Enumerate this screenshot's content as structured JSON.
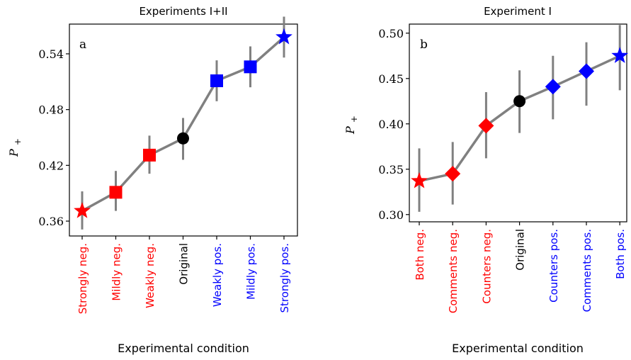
{
  "colors": {
    "neg": "#ff0000",
    "pos": "#0000ff",
    "neutral": "#000000",
    "line": "#808080"
  },
  "chart_data": [
    {
      "type": "line",
      "title": "Experiments I+II",
      "panel_label": "a",
      "xlabel": "Experimental condition",
      "ylabel": "P+",
      "ylim": [
        0.344,
        0.572
      ],
      "yticks": [
        0.36,
        0.42,
        0.48,
        0.54
      ],
      "ytick_labels": [
        "0.36",
        "0.42",
        "0.48",
        "0.54"
      ],
      "grid": false,
      "legend": "none",
      "categories": [
        "Strongly neg.",
        "Mildly neg.",
        "Weakly neg.",
        "Original",
        "Weakly pos.",
        "Mildly pos.",
        "Strongly pos."
      ],
      "category_colors": [
        "neg",
        "neg",
        "neg",
        "neutral",
        "pos",
        "pos",
        "pos"
      ],
      "markers": [
        "star",
        "square",
        "square",
        "circle",
        "square",
        "square",
        "star"
      ],
      "values": [
        0.371,
        0.391,
        0.431,
        0.449,
        0.511,
        0.526,
        0.558
      ],
      "err_low": [
        0.351,
        0.371,
        0.411,
        0.426,
        0.489,
        0.504,
        0.536
      ],
      "err_high": [
        0.392,
        0.414,
        0.452,
        0.471,
        0.533,
        0.548,
        0.58
      ]
    },
    {
      "type": "line",
      "title": "Experiment I",
      "panel_label": "b",
      "xlabel": "Experimental condition",
      "ylabel": "P+",
      "ylim": [
        0.292,
        0.51
      ],
      "yticks": [
        0.3,
        0.35,
        0.4,
        0.45,
        0.5
      ],
      "ytick_labels": [
        "0.30",
        "0.35",
        "0.40",
        "0.45",
        "0.50"
      ],
      "grid": false,
      "legend": "none",
      "categories": [
        "Both neg.",
        "Comments neg.",
        "Counters neg.",
        "Original",
        "Counters pos.",
        "Comments pos.",
        "Both pos."
      ],
      "category_colors": [
        "neg",
        "neg",
        "neg",
        "neutral",
        "pos",
        "pos",
        "pos"
      ],
      "markers": [
        "star",
        "diamond",
        "diamond",
        "circle",
        "diamond",
        "diamond",
        "star"
      ],
      "values": [
        0.337,
        0.345,
        0.398,
        0.425,
        0.441,
        0.458,
        0.475
      ],
      "err_low": [
        0.303,
        0.311,
        0.362,
        0.39,
        0.405,
        0.42,
        0.437
      ],
      "err_high": [
        0.373,
        0.38,
        0.435,
        0.459,
        0.475,
        0.49,
        0.509
      ]
    }
  ]
}
